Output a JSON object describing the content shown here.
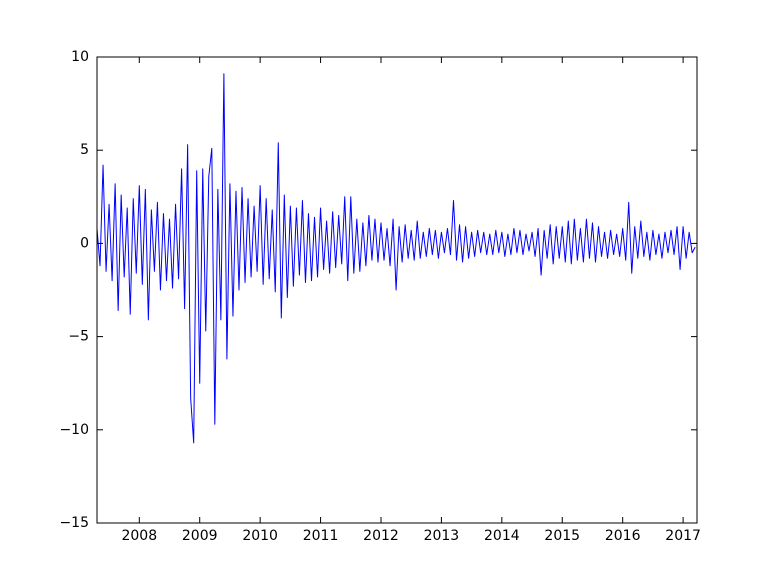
{
  "chart_data": {
    "type": "line",
    "color": "#0000ff",
    "xlim": [
      2007.3,
      2017.23
    ],
    "xticks": [
      2008,
      2009,
      2010,
      2011,
      2012,
      2013,
      2014,
      2015,
      2016,
      2017
    ],
    "ylim": [
      -15,
      10
    ],
    "yticks": [
      {
        "value": -15,
        "label": "−15"
      },
      {
        "value": -10,
        "label": "−10"
      },
      {
        "value": -5,
        "label": "−5"
      },
      0,
      5,
      10
    ],
    "x": [
      2007.3,
      2007.35,
      2007.4,
      2007.45,
      2007.5,
      2007.55,
      2007.6,
      2007.65,
      2007.7,
      2007.75,
      2007.8,
      2007.85,
      2007.9,
      2007.95,
      2008.0,
      2008.05,
      2008.1,
      2008.15,
      2008.2,
      2008.25,
      2008.3,
      2008.35,
      2008.4,
      2008.45,
      2008.5,
      2008.55,
      2008.6,
      2008.65,
      2008.7,
      2008.75,
      2008.8,
      2008.85,
      2008.9,
      2008.95,
      2009.0,
      2009.05,
      2009.1,
      2009.15,
      2009.2,
      2009.25,
      2009.3,
      2009.35,
      2009.4,
      2009.45,
      2009.5,
      2009.55,
      2009.6,
      2009.65,
      2009.7,
      2009.75,
      2009.8,
      2009.85,
      2009.9,
      2009.95,
      2010.0,
      2010.05,
      2010.1,
      2010.15,
      2010.2,
      2010.25,
      2010.3,
      2010.35,
      2010.4,
      2010.45,
      2010.5,
      2010.55,
      2010.6,
      2010.65,
      2010.7,
      2010.75,
      2010.8,
      2010.85,
      2010.9,
      2010.95,
      2011.0,
      2011.05,
      2011.1,
      2011.15,
      2011.2,
      2011.25,
      2011.3,
      2011.35,
      2011.4,
      2011.45,
      2011.5,
      2011.55,
      2011.6,
      2011.65,
      2011.7,
      2011.75,
      2011.8,
      2011.85,
      2011.9,
      2011.95,
      2012.0,
      2012.05,
      2012.1,
      2012.15,
      2012.2,
      2012.25,
      2012.3,
      2012.35,
      2012.4,
      2012.45,
      2012.5,
      2012.55,
      2012.6,
      2012.65,
      2012.7,
      2012.75,
      2012.8,
      2012.85,
      2012.9,
      2012.95,
      2013.0,
      2013.05,
      2013.1,
      2013.15,
      2013.2,
      2013.25,
      2013.3,
      2013.35,
      2013.4,
      2013.45,
      2013.5,
      2013.55,
      2013.6,
      2013.65,
      2013.7,
      2013.75,
      2013.8,
      2013.85,
      2013.9,
      2013.95,
      2014.0,
      2014.05,
      2014.1,
      2014.15,
      2014.2,
      2014.25,
      2014.3,
      2014.35,
      2014.4,
      2014.45,
      2014.5,
      2014.55,
      2014.6,
      2014.65,
      2014.7,
      2014.75,
      2014.8,
      2014.85,
      2014.9,
      2014.95,
      2015.0,
      2015.05,
      2015.1,
      2015.15,
      2015.2,
      2015.25,
      2015.3,
      2015.35,
      2015.4,
      2015.45,
      2015.5,
      2015.55,
      2015.6,
      2015.65,
      2015.7,
      2015.75,
      2015.8,
      2015.85,
      2015.9,
      2015.95,
      2016.0,
      2016.05,
      2016.1,
      2016.15,
      2016.2,
      2016.25,
      2016.3,
      2016.35,
      2016.4,
      2016.45,
      2016.5,
      2016.55,
      2016.6,
      2016.65,
      2016.7,
      2016.75,
      2016.8,
      2016.85,
      2016.9,
      2016.95,
      2017.0,
      2017.05,
      2017.1,
      2017.15,
      2017.2
    ],
    "values": [
      0.8,
      -1.2,
      4.2,
      -1.5,
      2.1,
      -2.0,
      3.2,
      -3.6,
      2.6,
      -1.8,
      1.9,
      -3.8,
      2.4,
      -1.6,
      3.1,
      -2.2,
      2.9,
      -4.1,
      1.8,
      -1.5,
      2.2,
      -2.5,
      1.6,
      -2.0,
      1.3,
      -2.4,
      2.1,
      -1.9,
      4.0,
      -3.5,
      5.3,
      -8.3,
      -10.7,
      3.9,
      -7.5,
      4.0,
      -4.7,
      3.6,
      5.1,
      -9.7,
      2.9,
      -4.1,
      9.1,
      -6.2,
      3.2,
      -3.9,
      2.8,
      -2.5,
      3.0,
      -2.1,
      2.4,
      -1.8,
      2.0,
      -1.5,
      3.1,
      -2.2,
      2.4,
      -1.9,
      1.8,
      -2.6,
      5.4,
      -4.0,
      2.6,
      -2.9,
      2.0,
      -2.3,
      1.9,
      -1.7,
      2.3,
      -2.1,
      1.6,
      -2.0,
      1.4,
      -1.8,
      1.9,
      -1.4,
      1.2,
      -1.6,
      1.7,
      -1.3,
      1.5,
      -1.1,
      2.5,
      -2.0,
      2.5,
      -1.6,
      1.3,
      -1.5,
      1.1,
      -1.2,
      1.5,
      -0.9,
      1.3,
      -1.0,
      1.1,
      -0.9,
      0.8,
      -1.2,
      1.3,
      -2.5,
      0.9,
      -1.0,
      1.0,
      -0.8,
      0.7,
      -0.9,
      1.2,
      -0.8,
      0.6,
      -0.7,
      0.8,
      -0.6,
      0.7,
      -0.8,
      0.6,
      -0.5,
      0.8,
      -0.6,
      2.3,
      -0.9,
      1.0,
      -1.0,
      0.9,
      -0.8,
      0.6,
      -0.7,
      0.7,
      -0.5,
      0.6,
      -0.6,
      0.5,
      -0.6,
      0.7,
      -0.5,
      0.6,
      -0.7,
      0.5,
      -0.6,
      0.8,
      -0.5,
      0.7,
      -0.6,
      0.5,
      -0.4,
      0.6,
      -0.7,
      0.8,
      -1.7,
      0.7,
      -0.8,
      1.0,
      -1.1,
      0.9,
      -0.8,
      0.9,
      -1.0,
      1.2,
      -1.1,
      1.3,
      -0.9,
      0.8,
      -1.0,
      1.3,
      -0.8,
      1.1,
      -1.0,
      0.9,
      -0.7,
      0.6,
      -0.8,
      0.7,
      -0.6,
      0.5,
      -0.7,
      0.8,
      -0.9,
      2.2,
      -1.6,
      0.9,
      -0.8,
      1.2,
      -0.7,
      0.6,
      -0.9,
      0.7,
      -0.6,
      0.5,
      -0.8,
      0.6,
      -0.5,
      0.7,
      -0.6,
      0.9,
      -1.4,
      0.9,
      -0.8,
      0.6,
      -0.5,
      -0.2
    ]
  }
}
